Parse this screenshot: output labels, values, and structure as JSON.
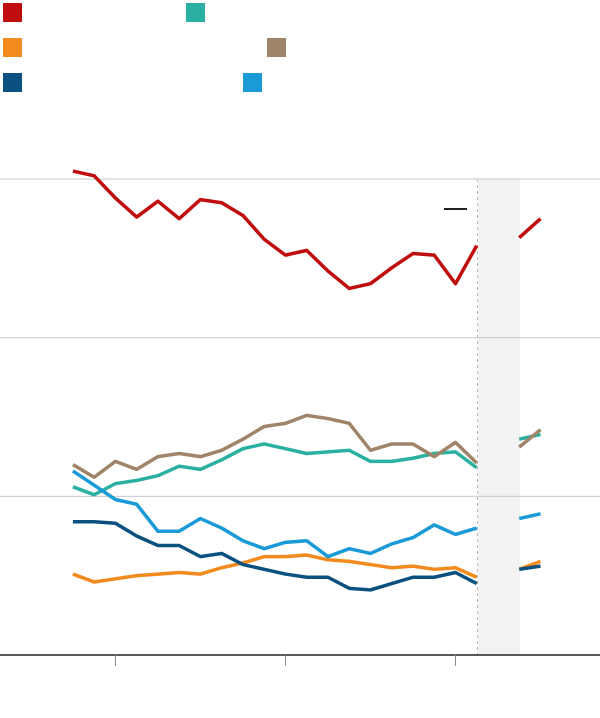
{
  "chart_data": {
    "type": "line",
    "x": [
      0,
      1,
      2,
      3,
      4,
      5,
      6,
      7,
      8,
      9,
      10,
      11,
      12,
      13,
      14,
      15,
      16,
      17,
      18,
      19,
      20,
      21,
      22
    ],
    "xlim": [
      -3.43,
      24.8
    ],
    "xticks": [
      2,
      10,
      18
    ],
    "ylim": [
      0,
      3.1
    ],
    "yticks": [
      0,
      1,
      2,
      3
    ],
    "grid": true,
    "series": [
      {
        "color": "#c00d0d",
        "values": [
          3.05,
          3.02,
          2.88,
          2.76,
          2.86,
          2.75,
          2.87,
          2.85,
          2.77,
          2.62,
          2.52,
          2.55,
          2.42,
          2.31,
          2.34,
          2.44,
          2.53,
          2.52,
          2.34,
          2.58,
          null,
          2.63,
          2.75
        ]
      },
      {
        "color": "#2ab0a0",
        "values": [
          1.06,
          1.01,
          1.08,
          1.1,
          1.13,
          1.19,
          1.17,
          1.23,
          1.3,
          1.33,
          1.3,
          1.27,
          1.28,
          1.29,
          1.22,
          1.22,
          1.24,
          1.27,
          1.28,
          1.18,
          null,
          1.36,
          1.39
        ]
      },
      {
        "color": "#f28a1e",
        "values": [
          0.51,
          0.46,
          0.48,
          0.5,
          0.51,
          0.52,
          0.51,
          0.55,
          0.58,
          0.62,
          0.62,
          0.63,
          0.6,
          0.59,
          0.57,
          0.55,
          0.56,
          0.54,
          0.55,
          0.49,
          null,
          0.54,
          0.59
        ]
      },
      {
        "color": "#a0846a",
        "values": [
          1.2,
          1.12,
          1.22,
          1.17,
          1.25,
          1.27,
          1.25,
          1.29,
          1.36,
          1.44,
          1.46,
          1.51,
          1.49,
          1.46,
          1.29,
          1.33,
          1.33,
          1.25,
          1.34,
          1.21,
          null,
          1.31,
          1.42
        ]
      },
      {
        "color": "#0b5180",
        "values": [
          0.84,
          0.84,
          0.83,
          0.75,
          0.69,
          0.69,
          0.62,
          0.64,
          0.57,
          0.54,
          0.51,
          0.49,
          0.49,
          0.42,
          0.41,
          0.45,
          0.49,
          0.49,
          0.52,
          0.45,
          null,
          0.54,
          0.56
        ]
      },
      {
        "color": "#1a9ad6",
        "values": [
          1.16,
          1.07,
          0.98,
          0.95,
          0.78,
          0.78,
          0.86,
          0.8,
          0.72,
          0.67,
          0.71,
          0.72,
          0.62,
          0.67,
          0.64,
          0.7,
          0.74,
          0.82,
          0.76,
          0.8,
          null,
          0.86,
          0.89
        ]
      }
    ]
  }
}
